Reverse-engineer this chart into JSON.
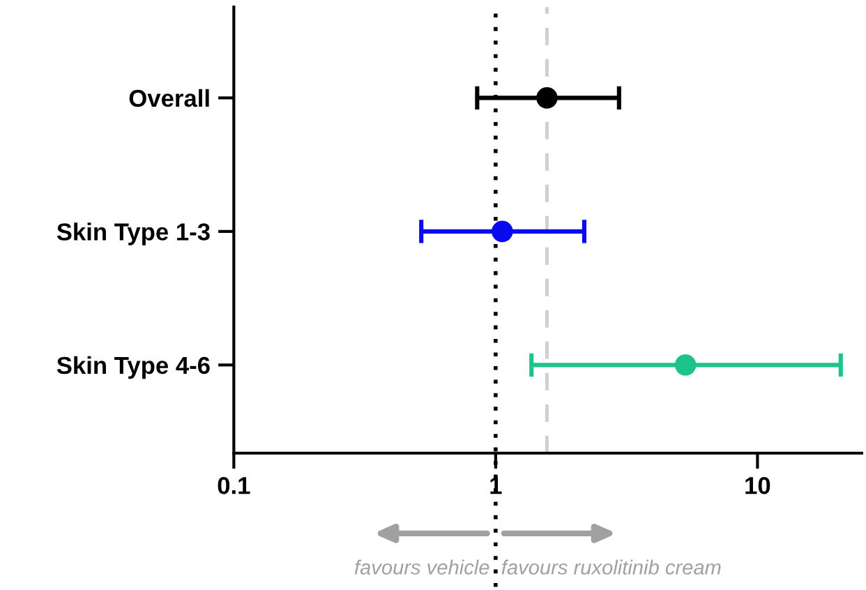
{
  "chart_data": {
    "type": "scatter",
    "orientation": "horizontal",
    "categories": [
      "Overall",
      "Skin Type 1-3",
      "Skin Type 4-6"
    ],
    "values": [
      1.57,
      1.06,
      5.31
    ],
    "colors": [
      "#000000",
      "#0a0af0",
      "#1dc48a"
    ],
    "errors": [
      [
        0.85,
        2.96
      ],
      [
        0.52,
        2.18
      ],
      [
        1.37,
        20.8
      ]
    ],
    "log": true,
    "xlim": [
      0.1,
      25
    ],
    "xticks": [
      0.1,
      1,
      10
    ],
    "ref_lines": [
      {
        "axis": "x",
        "value": 1,
        "color": "#000000",
        "line_style": "dotted"
      },
      {
        "axis": "x",
        "value": 1.57,
        "color": "#d0d0d0",
        "line_style": "dashed"
      }
    ],
    "annotations": [
      "favours vehicle",
      "favours ruxolitinib cream"
    ],
    "marker": "circle",
    "grid": false,
    "legend": false
  }
}
